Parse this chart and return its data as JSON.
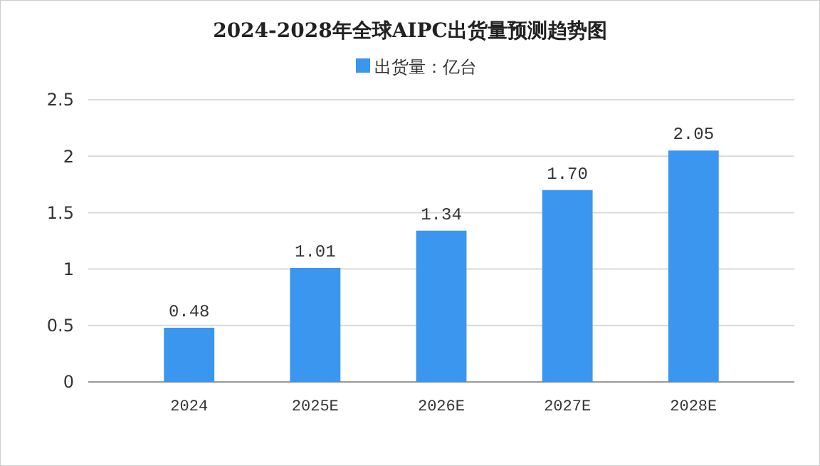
{
  "chart_data": {
    "type": "bar",
    "title": "2024-2028年全球AIPC出货量预测趋势图",
    "categories": [
      "2024",
      "2025E",
      "2026E",
      "2027E",
      "2028E"
    ],
    "series": [
      {
        "name": "出货量：亿台",
        "color": "#3a96ee",
        "values": [
          0.48,
          1.01,
          1.34,
          1.7,
          2.05
        ],
        "value_labels": [
          "0.48",
          "1.01",
          "1.34",
          "1.70",
          "2.05"
        ]
      }
    ],
    "ylim": [
      0,
      2.5
    ],
    "yticks": [
      0,
      0.5,
      1,
      1.5,
      2,
      2.5
    ],
    "grid": "y",
    "legend": "top"
  }
}
